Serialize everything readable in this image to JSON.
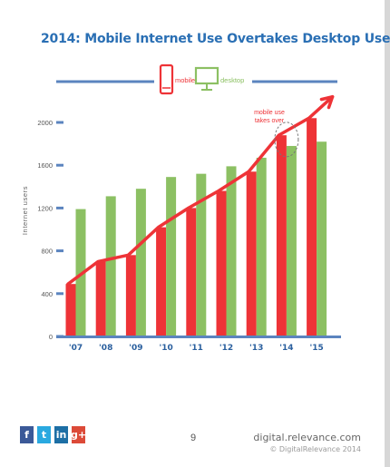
{
  "page": {
    "title": "2014: Mobile Internet Use Overtakes Desktop Use",
    "page_number": "9",
    "site": "digital.relevance.com",
    "copyright": "© DigitalRelevance 2014"
  },
  "legend": {
    "mobile_label": "mobile",
    "desktop_label": "desktop",
    "mobile_icon": "phone-icon",
    "desktop_icon": "monitor-icon"
  },
  "annotation": {
    "line1": "mobile use",
    "line2": "takes over"
  },
  "social": [
    {
      "name": "facebook-icon",
      "glyph": "f",
      "color": "#3b5998"
    },
    {
      "name": "twitter-icon",
      "glyph": "t",
      "color": "#2aa9e0"
    },
    {
      "name": "linkedin-icon",
      "glyph": "in",
      "color": "#1d6fa5"
    },
    {
      "name": "googleplus-icon",
      "glyph": "g+",
      "color": "#dc4a38"
    }
  ],
  "colors": {
    "mobile": "#ee3337",
    "desktop": "#8cc063",
    "axis": "#5b84bf",
    "tick_text": "#2a5f9e"
  },
  "chart_data": {
    "type": "bar",
    "title": "2014: Mobile Internet Use Overtakes Desktop Use",
    "ylabel": "Internet users",
    "xlabel": "",
    "ylim": [
      0,
      2000
    ],
    "yticks": [
      0,
      400,
      800,
      1200,
      1600,
      2000
    ],
    "categories": [
      "'07",
      "'08",
      "'09",
      "'10",
      "'11",
      "'12",
      "'13",
      "'14",
      "'15"
    ],
    "series": [
      {
        "name": "mobile",
        "values": [
          490,
          700,
          760,
          1020,
          1200,
          1360,
          1540,
          1880,
          2040
        ]
      },
      {
        "name": "desktop",
        "values": [
          1190,
          1310,
          1380,
          1490,
          1520,
          1590,
          1670,
          1780,
          1820
        ]
      }
    ],
    "trend_line": {
      "series": "mobile",
      "values": [
        490,
        700,
        760,
        1020,
        1200,
        1360,
        1540,
        1880,
        2040
      ],
      "end_value": 2240
    },
    "annotation": "mobile use takes over",
    "grid": false,
    "legend_position": "top-center"
  }
}
